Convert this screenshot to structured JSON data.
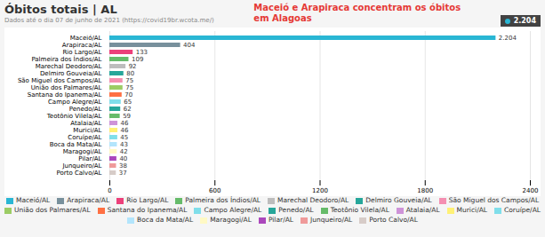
{
  "chart_data": {
    "type": "bar",
    "orientation": "horizontal",
    "title": "Óbitos totais | AL",
    "subtitle": "Dados até o dia 07 de junho de 2021 (https://covid19br.wcota.me/)",
    "annotations": [
      {
        "text": "Maceió e Arapiraca concentram os óbitos\nem Alagoas",
        "color": "#e53935"
      },
      {
        "text": "2.204",
        "color": "#29b6d4"
      }
    ],
    "categories": [
      "Maceió/AL",
      "Arapiraca/AL",
      "Rio Largo/AL",
      "Palmeira dos Índios/AL",
      "Marechal Deodoro/AL",
      "Delmiro Gouveia/AL",
      "São Miguel dos Campos/AL",
      "União dos Palmares/AL",
      "Santana do Ipanema/AL",
      "Campo Alegre/AL",
      "Penedo/AL",
      "Teotônio Vilela/AL",
      "Atalaia/AL",
      "Murici/AL",
      "Coruípe/AL",
      "Boca da Mata/AL",
      "Maragogi/AL",
      "Pilar/AL",
      "Junqueiro/AL",
      "Porto Calvo/AL"
    ],
    "values": [
      2204,
      404,
      133,
      109,
      92,
      80,
      75,
      75,
      70,
      65,
      62,
      59,
      46,
      46,
      45,
      43,
      42,
      40,
      38,
      37
    ],
    "value_labels": [
      "2.204",
      "404",
      "133",
      "109",
      "92",
      "80",
      "75",
      "75",
      "70",
      "65",
      "62",
      "59",
      "46",
      "46",
      "45",
      "43",
      "42",
      "40",
      "38",
      "37"
    ],
    "colors": [
      "#29b6d4",
      "#78909c",
      "#ec407a",
      "#66bb6a",
      "#bdbdbd",
      "#26a69a",
      "#f48fb1",
      "#9ccc65",
      "#ff7043",
      "#80deea",
      "#26a69a",
      "#66bb6a",
      "#ce93d8",
      "#fff176",
      "#80deea",
      "#b3e5fc",
      "#fff9c4",
      "#ab47bc",
      "#ef9a9a",
      "#d7ccc8"
    ],
    "xlim": [
      0,
      2400
    ],
    "xticks": [
      0,
      600,
      1200,
      1800,
      2400
    ],
    "grid": true,
    "data_labels": true,
    "legend": "bottom"
  }
}
